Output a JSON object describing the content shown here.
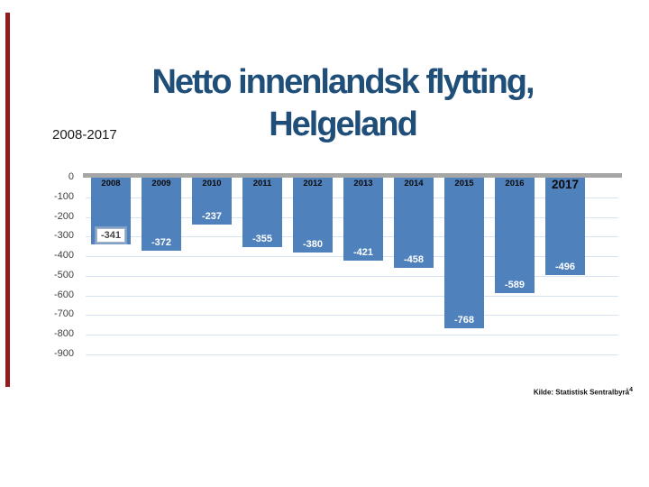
{
  "slide": {
    "title_line1": "Netto innenlandsk flytting,",
    "title_line2": "Helgeland",
    "subtitle": "2008-2017",
    "footer": "Kilde: Statistisk Sentralbyrå",
    "page_number": "4"
  },
  "colors": {
    "title": "#1f4e79",
    "bar": "#4f81bd",
    "accent_stripe": "#921b1e",
    "zero_line": "#a6a6a6",
    "gridline": "#d9e2f0"
  },
  "chart_data": {
    "type": "bar",
    "title": "Netto innenlandsk flytting, Helgeland",
    "categories": [
      "2008",
      "2009",
      "2010",
      "2011",
      "2012",
      "2013",
      "2014",
      "2015",
      "2016",
      "2017"
    ],
    "values": [
      -341,
      -372,
      -237,
      -355,
      -380,
      -421,
      -458,
      -768,
      -589,
      -496
    ],
    "ylim": [
      -900,
      0
    ],
    "yticks": [
      0,
      -100,
      -200,
      -300,
      -400,
      -500,
      -600,
      -700,
      -800,
      -900
    ],
    "xlabel": "",
    "ylabel": "",
    "grid": true,
    "legend": false,
    "bar_color": "#4f81bd",
    "selected_label_index": 0,
    "emphasized_category_index": 9
  }
}
